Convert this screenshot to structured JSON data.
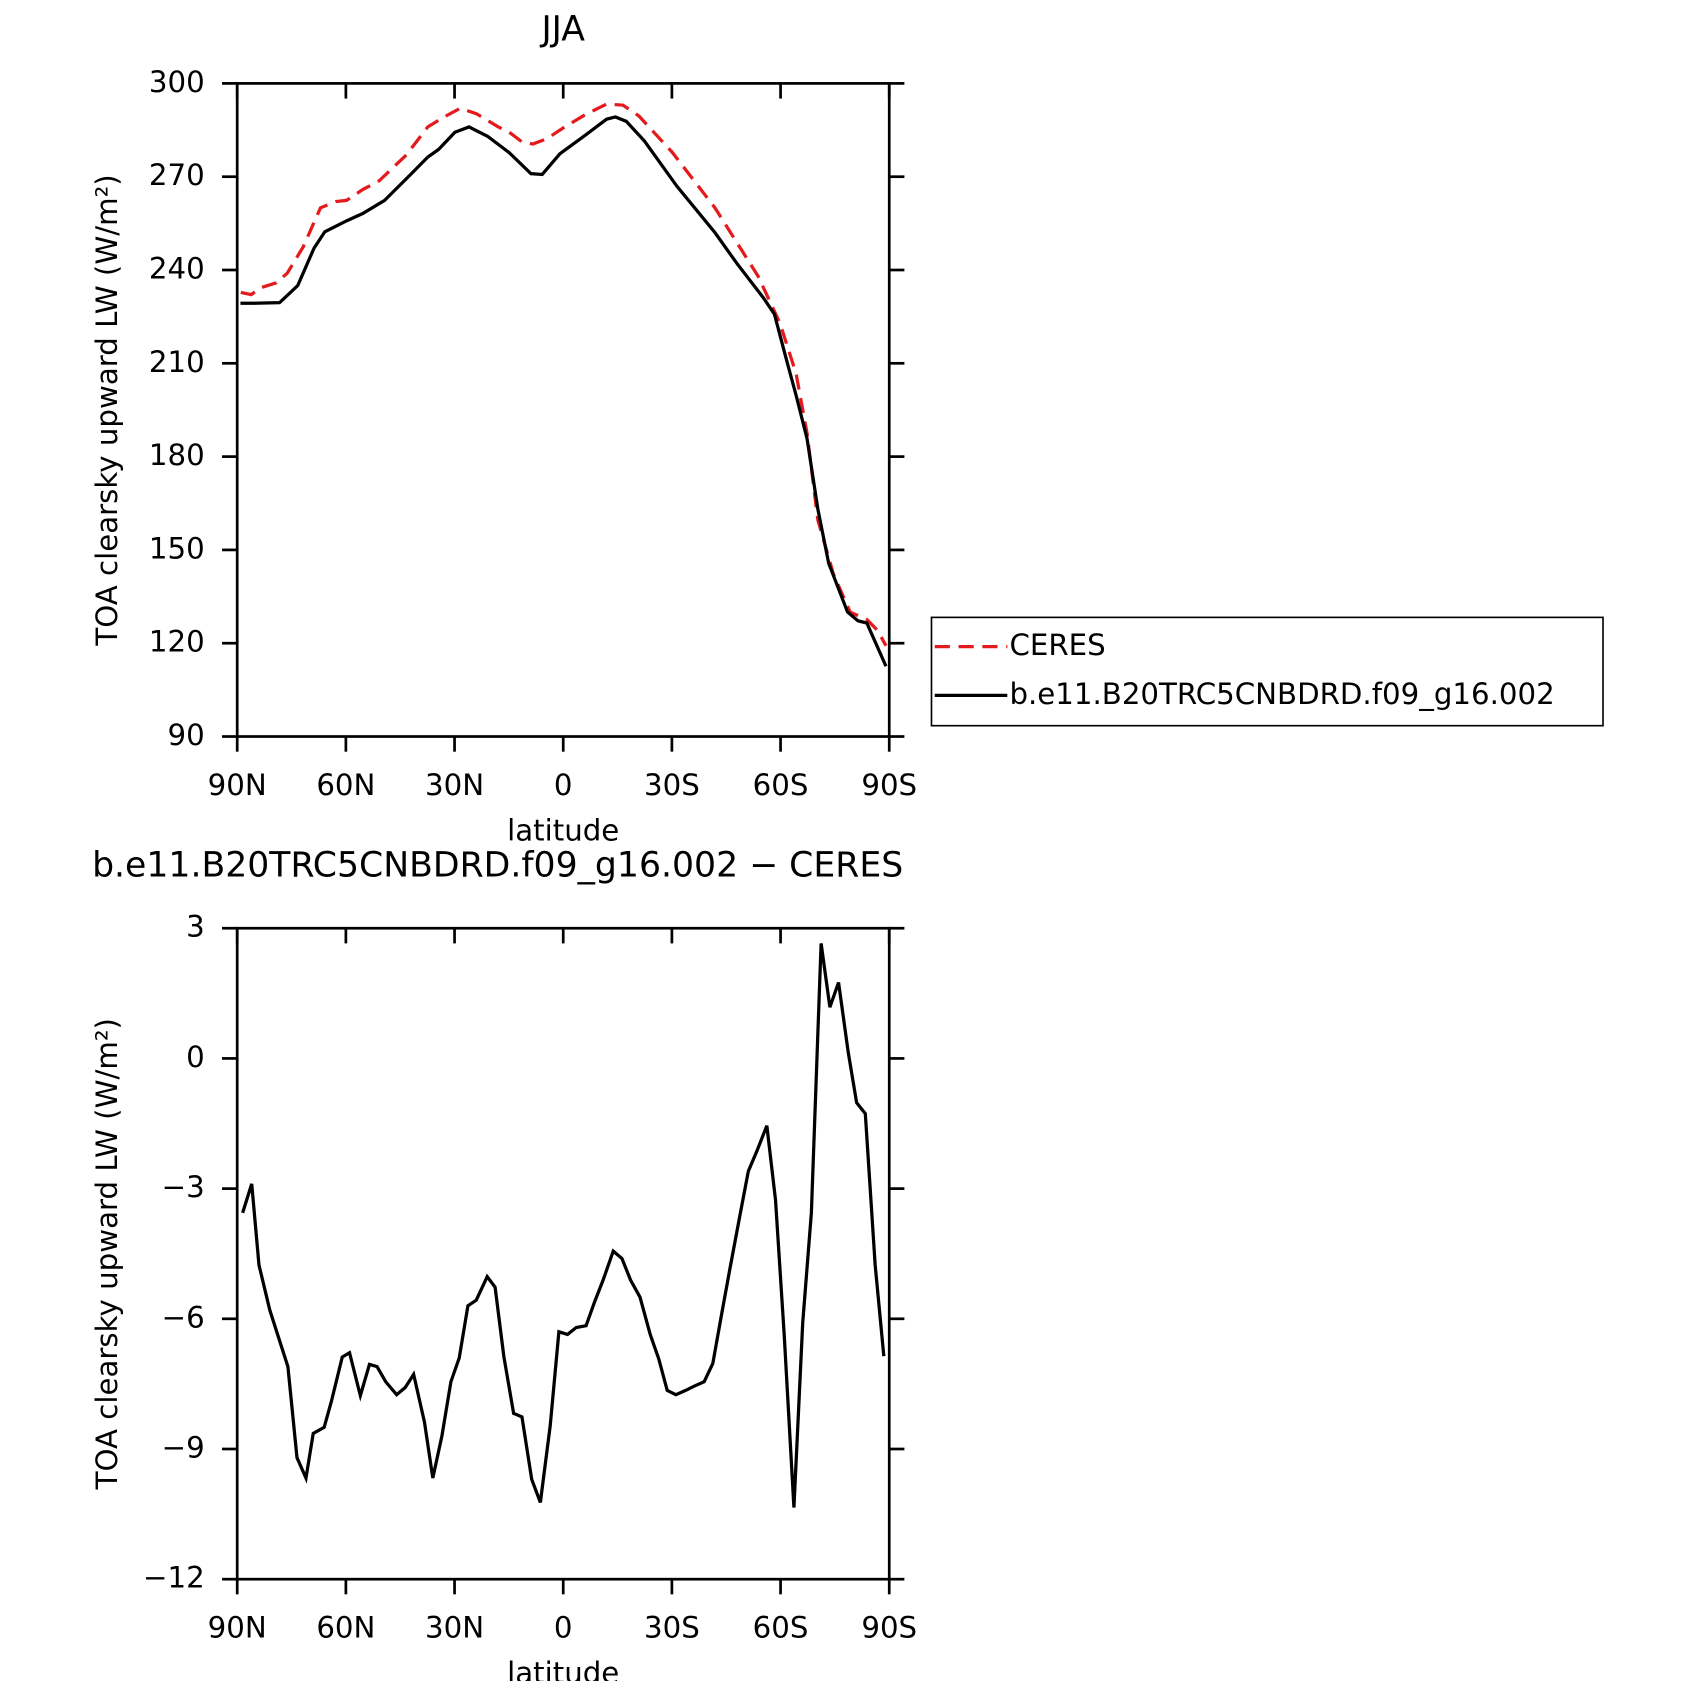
{
  "chart_data": [
    {
      "type": "line",
      "title": "JJA",
      "xlabel": "latitude",
      "ylabel": "TOA clearsky upward LW (W/m²)",
      "xlim": [
        90,
        -90
      ],
      "xticks": [
        {
          "value": 90,
          "label": "90N"
        },
        {
          "value": 60,
          "label": "60N"
        },
        {
          "value": 30,
          "label": "30N"
        },
        0,
        {
          "value": -30,
          "label": "30S"
        },
        {
          "value": -60,
          "label": "60S"
        },
        {
          "value": -90,
          "label": "90S"
        }
      ],
      "ylim": [
        90,
        300
      ],
      "yticks": [
        90,
        120,
        150,
        180,
        210,
        240,
        270,
        300
      ],
      "legend": "right",
      "series": [
        {
          "name": "CERES",
          "color": "#e41a1c",
          "dash": "dashed",
          "x": [
            89,
            86.1,
            83.7,
            79.2,
            76.2,
            71.8,
            67,
            62.8,
            59.8,
            55.3,
            50.8,
            43.3,
            37.4,
            32.9,
            28.4,
            23.9,
            17.9,
            14.9,
            11.4,
            8.4,
            4.5,
            0,
            -6,
            -12,
            -16.5,
            -20.9,
            -30,
            -41.9,
            -53.8,
            -59.8,
            -64.3,
            -67.3,
            -70.3,
            -74.6,
            -79.2,
            -83.8,
            -86.8,
            -89.1
          ],
          "values": [
            232.8,
            232.1,
            234.2,
            235.9,
            239.0,
            247.4,
            260,
            262,
            262.4,
            265.9,
            268.7,
            277,
            286,
            289.2,
            292,
            290.2,
            286,
            284.3,
            281.2,
            280.5,
            282.2,
            285.7,
            289.9,
            293.4,
            293,
            289.5,
            278,
            260,
            238,
            223,
            206.7,
            187.5,
            159.6,
            142.2,
            130,
            127.6,
            124.1,
            119.2
          ]
        },
        {
          "name": "b.e11.B20TRC5CNBDRD.f09_g16.002",
          "color": "#000000",
          "dash": "solid",
          "x": [
            89.1,
            86.1,
            78.3,
            73.3,
            68.8,
            65.8,
            59.8,
            55.3,
            49.3,
            41.9,
            37.4,
            34.4,
            29.9,
            26,
            20.9,
            14.9,
            8.9,
            5.8,
            0.9,
            -6,
            -12,
            -14.4,
            -17.4,
            -22.4,
            -31.4,
            -41.9,
            -47.9,
            -55.3,
            -58.3,
            -61.3,
            -64.3,
            -67.3,
            -70.3,
            -73.3,
            -78.5,
            -81.4,
            -83.8,
            -89.1
          ],
          "values": [
            229.3,
            229.3,
            229.5,
            235,
            247,
            252.3,
            255.8,
            258.2,
            262.4,
            271,
            276.3,
            278.8,
            284.3,
            286,
            283,
            277.7,
            271,
            270.7,
            277.4,
            283.3,
            288.5,
            289.2,
            287.8,
            281.5,
            266.9,
            252,
            242.2,
            231,
            225.8,
            212.6,
            199.7,
            185.8,
            163.1,
            145.7,
            130,
            127.2,
            126.5,
            112.6
          ]
        }
      ]
    },
    {
      "type": "line",
      "title": "b.e11.B20TRC5CNBDRD.f09_g16.002 − CERES",
      "xlabel": "latitude",
      "ylabel": "TOA clearsky upward LW (W/m²)",
      "xlim": [
        90,
        -90
      ],
      "xticks": [
        {
          "value": 90,
          "label": "90N"
        },
        {
          "value": 60,
          "label": "60N"
        },
        {
          "value": 30,
          "label": "30N"
        },
        0,
        {
          "value": -30,
          "label": "30S"
        },
        {
          "value": -60,
          "label": "60S"
        },
        {
          "value": -90,
          "label": "90S"
        }
      ],
      "ylim": [
        -12,
        3
      ],
      "yticks": [
        {
          "value": -12,
          "label": "−12"
        },
        {
          "value": -9,
          "label": "−9"
        },
        {
          "value": -6,
          "label": "−6"
        },
        {
          "value": -3,
          "label": "−3"
        },
        0,
        3
      ],
      "series": [
        {
          "color": "#000000",
          "dash": "solid",
          "x": [
            88.5,
            86,
            84,
            81,
            76,
            73.5,
            71,
            69,
            66,
            64,
            61,
            59,
            56,
            53.5,
            51.4,
            49,
            46,
            43.6,
            41.3,
            38.3,
            36,
            33.5,
            31,
            28.7,
            26.3,
            24,
            21,
            18.8,
            16.4,
            13.7,
            11.4,
            8.7,
            6.3,
            3.6,
            1.2,
            -1.2,
            -3.6,
            -6.3,
            -8.7,
            -11,
            -13.8,
            -16.2,
            -18.6,
            -21.2,
            -24,
            -26.4,
            -28.7,
            -31.1,
            -33.8,
            -36.2,
            -38.9,
            -41.3,
            -43.7,
            -46,
            -48.8,
            -51.1,
            -53.5,
            -56.2,
            -58.6,
            -61,
            -63.7,
            -66.1,
            -68.5,
            -71.2,
            -73.6,
            -76,
            -78.7,
            -81,
            -83.4,
            -86.1,
            -88.5
          ],
          "values": [
            -3.56,
            -2.89,
            -4.76,
            -5.8,
            -7.1,
            -9.2,
            -9.67,
            -8.64,
            -8.5,
            -7.9,
            -6.88,
            -6.78,
            -7.77,
            -7.05,
            -7.1,
            -7.45,
            -7.75,
            -7.58,
            -7.28,
            -8.38,
            -9.67,
            -8.7,
            -7.45,
            -6.9,
            -5.7,
            -5.57,
            -5.03,
            -5.27,
            -6.87,
            -8.18,
            -8.26,
            -9.7,
            -10.23,
            -8.46,
            -6.3,
            -6.36,
            -6.2,
            -6.16,
            -5.6,
            -5.11,
            -4.44,
            -4.61,
            -5.11,
            -5.5,
            -6.36,
            -6.93,
            -7.65,
            -7.75,
            -7.65,
            -7.55,
            -7.45,
            -7.03,
            -5.9,
            -4.86,
            -3.61,
            -2.6,
            -2.13,
            -1.55,
            -3.26,
            -6.36,
            -10.35,
            -6.1,
            -3.56,
            2.65,
            1.18,
            1.75,
            0.13,
            -1.02,
            -1.27,
            -4.76,
            -6.86
          ]
        }
      ]
    }
  ]
}
